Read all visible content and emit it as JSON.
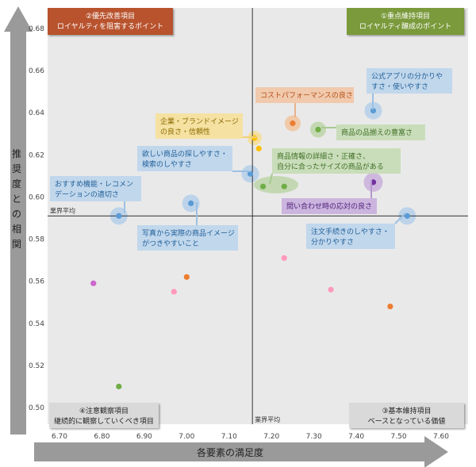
{
  "chart_data": {
    "type": "scatter",
    "xlabel": "各要素の満足度",
    "ylabel": "推奨度との相関",
    "xlim": [
      6.65,
      7.65
    ],
    "ylim": [
      0.495,
      0.685
    ],
    "xticks": [
      "6.70",
      "6.80",
      "6.90",
      "7.00",
      "7.10",
      "7.20",
      "7.30",
      "7.40",
      "7.50",
      "7.60"
    ],
    "yticks": [
      "0.50",
      "0.52",
      "0.54",
      "0.56",
      "0.58",
      "0.60",
      "0.62",
      "0.64",
      "0.66",
      "0.68"
    ],
    "avg_x": 7.155,
    "avg_y": 0.591,
    "avg_label": "業界平均",
    "quadrants": {
      "top_left": {
        "line1": "②優先改善項目",
        "line2": "ロイヤルティを阻害するポイント",
        "color": "#b8532f"
      },
      "top_right": {
        "line1": "①重点維持項目",
        "line2": "ロイヤルティ醸成のポイント",
        "color": "#7a9a3a"
      },
      "bottom_left": {
        "line1": "④注意観察項目",
        "line2": "継続的に観察していくべき項目",
        "color": "#d9d9d9"
      },
      "bottom_right": {
        "line1": "③基本維持項目",
        "line2": "ベースとなっている価値",
        "color": "#d9d9d9"
      }
    },
    "points": [
      {
        "x": 7.44,
        "y": 0.641,
        "color": "#5b9bd5",
        "label": [
          "公式アプリの分かりや",
          "すさ・使いやすさ"
        ],
        "label_color": "#5b9bd5"
      },
      {
        "x": 7.25,
        "y": 0.635,
        "color": "#ed7d31",
        "label": [
          "コストパフォーマンスの良さ"
        ],
        "label_color": "#ed7d31"
      },
      {
        "x": 7.31,
        "y": 0.632,
        "color": "#70ad47",
        "label": [
          "商品の品揃えの豊富さ"
        ],
        "label_color": "#70ad47"
      },
      {
        "x": 7.16,
        "y": 0.628,
        "color": "#ffc000",
        "label": [
          "企業・ブランドイメージ",
          "の良さ・信頼性"
        ],
        "label_color": "#ffc000"
      },
      {
        "x": 7.17,
        "y": 0.623,
        "color": "#ffc000",
        "label": [],
        "label_color": "#ffc000"
      },
      {
        "x": 7.15,
        "y": 0.611,
        "color": "#5b9bd5",
        "label": [
          "欲しい商品の探しやすさ・",
          "検索のしやすさ"
        ],
        "label_color": "#5b9bd5"
      },
      {
        "x": 7.18,
        "y": 0.605,
        "color": "#70ad47",
        "label": [
          "商品情報の詳細さ・正確さ、",
          "自分に合ったサイズの商品がある"
        ],
        "label_color": "#70ad47"
      },
      {
        "x": 7.23,
        "y": 0.605,
        "color": "#70ad47",
        "label": [],
        "label_color": "#70ad47"
      },
      {
        "x": 7.44,
        "y": 0.607,
        "color": "#7030a0",
        "label": [
          "問い合わせ時の応対の良さ"
        ],
        "label_color": "#7030a0"
      },
      {
        "x": 6.84,
        "y": 0.591,
        "color": "#5b9bd5",
        "label": [
          "おすすめ機能・レコメン",
          "デーションの適切さ"
        ],
        "label_color": "#5b9bd5"
      },
      {
        "x": 7.01,
        "y": 0.597,
        "color": "#5b9bd5",
        "label": [
          "写真から実際の商品イメージ",
          "がつきやすいこと"
        ],
        "label_color": "#5b9bd5"
      },
      {
        "x": 7.52,
        "y": 0.591,
        "color": "#5b9bd5",
        "label": [
          "注文手続きのしやすさ・",
          "分かりやすさ"
        ],
        "label_color": "#5b9bd5"
      },
      {
        "x": 7.23,
        "y": 0.571,
        "color": "#ff99bb",
        "label": [],
        "label_color": ""
      },
      {
        "x": 7.0,
        "y": 0.562,
        "color": "#ed7d31",
        "label": [],
        "label_color": ""
      },
      {
        "x": 6.78,
        "y": 0.559,
        "color": "#cc66cc",
        "label": [],
        "label_color": ""
      },
      {
        "x": 6.97,
        "y": 0.555,
        "color": "#ff99bb",
        "label": [],
        "label_color": ""
      },
      {
        "x": 7.34,
        "y": 0.556,
        "color": "#ff99bb",
        "label": [],
        "label_color": ""
      },
      {
        "x": 7.48,
        "y": 0.548,
        "color": "#ed7d31",
        "label": [],
        "label_color": ""
      },
      {
        "x": 6.84,
        "y": 0.51,
        "color": "#70ad47",
        "label": [],
        "label_color": ""
      }
    ]
  }
}
